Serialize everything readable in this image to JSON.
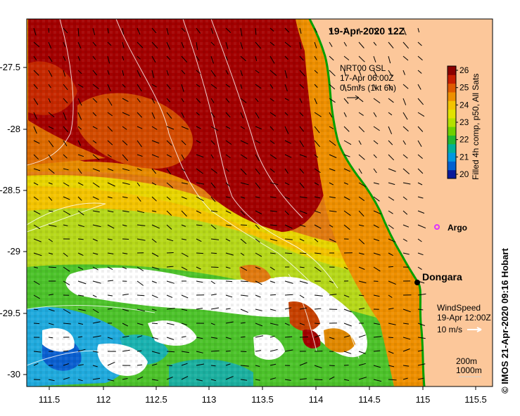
{
  "title": "19-Apr-2020 12Z",
  "credit": "© IMOS 21-Apr-2020 09:16 Hobart",
  "current_legend": {
    "line1": "NRT00 GSL",
    "line2": "17-Apr 06:00Z",
    "line3": "0.5m/s (1kt 6h)"
  },
  "wind_legend": {
    "line1": "WindSpeed",
    "line2": "19-Apr 12:00Z",
    "line3": "10 m/s"
  },
  "contour_legend": {
    "line1": "200m",
    "line2": "1000m"
  },
  "colorbar": {
    "label": "Filled 4h comp, p50, All Sats",
    "ticks": [
      "26",
      "25",
      "24",
      "23",
      "22",
      "21",
      "20"
    ],
    "colors": [
      "#8b0000",
      "#c81e00",
      "#e05a00",
      "#ee9000",
      "#f3c300",
      "#e2e200",
      "#b4e000",
      "#6fd000",
      "#22b832",
      "#00b09a",
      "#0098e0",
      "#0060d0",
      "#0a1a9a"
    ]
  },
  "places": [
    {
      "name": "Dongara",
      "type": "town"
    },
    {
      "name": "Argo",
      "type": "float"
    }
  ],
  "x_ticks": [
    "111.5",
    "112",
    "112.5",
    "113",
    "113.5",
    "114",
    "114.5",
    "115",
    "115.5"
  ],
  "y_ticks": [
    "-27.5",
    "-28",
    "-28.5",
    "-29",
    "-29.5",
    "-30"
  ],
  "colors": {
    "land": "#fcc79a",
    "coast": "#00a000",
    "no_data": "#ffffff",
    "argo": "#dd33ff"
  }
}
